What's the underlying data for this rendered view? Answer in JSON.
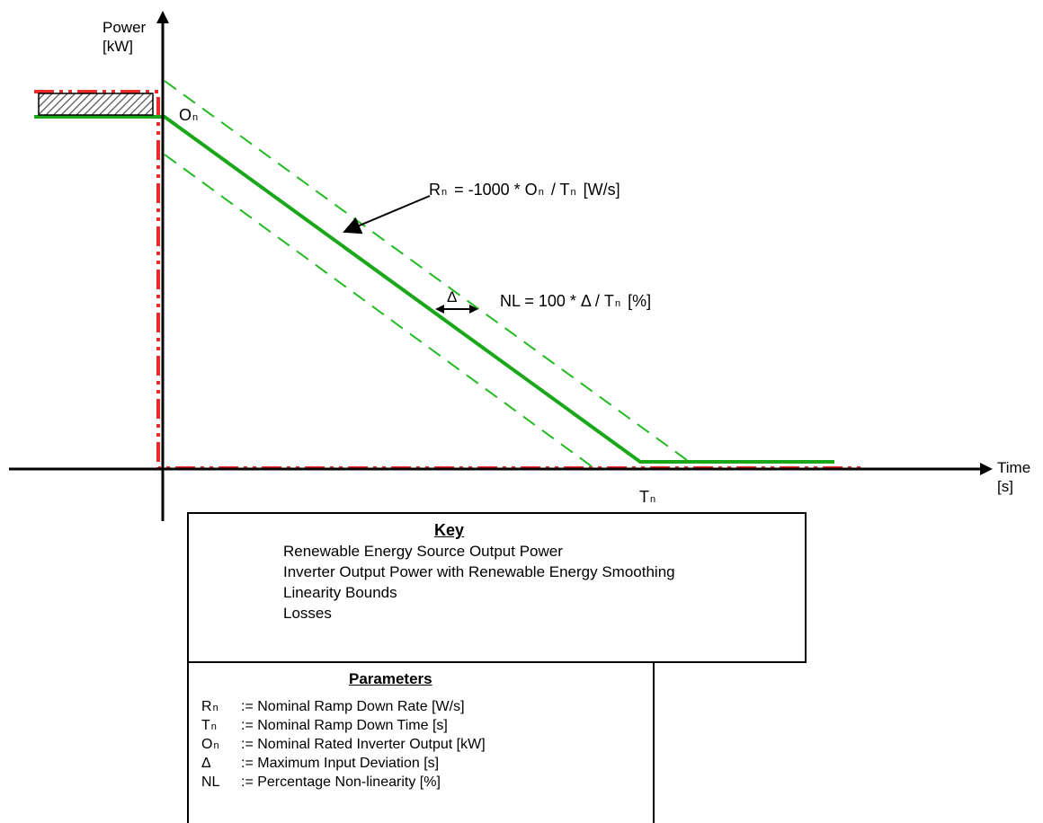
{
  "axes": {
    "y_label_line1": "Power",
    "y_label_line2": "[kW]",
    "x_label_line1": "Time",
    "x_label_line2": "[s]"
  },
  "points": {
    "on_main": "O",
    "on_sub": "n",
    "tn_main": "T",
    "tn_sub": "n"
  },
  "equations": {
    "rate": {
      "p1": "R",
      "p1_sub": "n",
      "p2": " = -1000 * O",
      "p2_sub": "n",
      "p3": " / T",
      "p3_sub": "n",
      "p4": " [W/s]"
    },
    "delta_symbol": "Δ",
    "nonlinearity": {
      "p1": "NL = 100 * Δ / T",
      "p1_sub": "n",
      "p2": " [%]"
    }
  },
  "key": {
    "title": "Key",
    "items": [
      {
        "label": "Renewable Energy Source Output Power",
        "swatch": "red-dash-dot"
      },
      {
        "label": "Inverter Output Power with Renewable Energy Smoothing",
        "swatch": "green-solid"
      },
      {
        "label": "Linearity Bounds",
        "swatch": "hatched-box"
      },
      {
        "label": "Losses",
        "swatch": ""
      }
    ]
  },
  "parameters": {
    "title": "Parameters",
    "rows": [
      {
        "sym": "R",
        "sub": "n",
        "def": ":= Nominal Ramp Down Rate [W/s]"
      },
      {
        "sym": "T",
        "sub": "n",
        "def": ":= Nominal Ramp Down Time [s]"
      },
      {
        "sym": "O",
        "sub": "n",
        "def": ":= Nominal Rated Inverter Output [kW]"
      },
      {
        "sym": "Δ",
        "sub": "",
        "def": ":= Maximum Input Deviation [s]"
      },
      {
        "sym": "NL",
        "sub": "",
        "def": ":= Percentage Non-linearity [%]"
      }
    ]
  },
  "colors": {
    "source_red": "#ee2a2a",
    "inverter_green": "#1aa81a",
    "bounds_green": "#22bb22",
    "axis": "#000000"
  }
}
